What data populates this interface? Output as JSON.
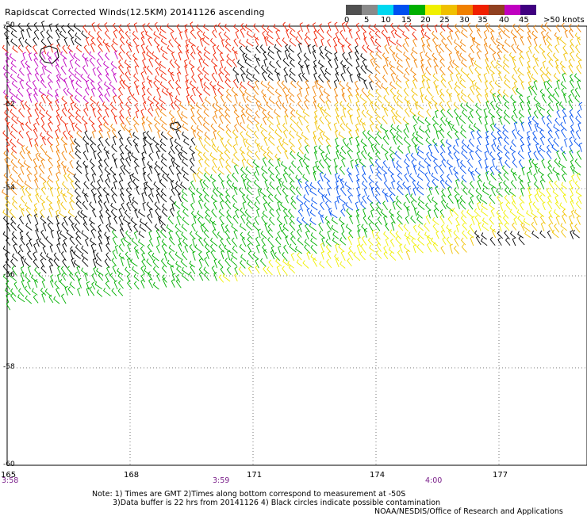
{
  "title": "Rapidscat Corrected Winds(12.5KM) 20141126 ascending",
  "colorbar": {
    "labels": [
      "0",
      "5",
      "10",
      "15",
      "20",
      "25",
      "30",
      "35",
      "40",
      "45",
      ">50 knots"
    ],
    "colors": [
      "#505050",
      "#8a8a8a",
      "#00d8f0",
      "#0050f0",
      "#00b000",
      "#f0f000",
      "#f0c000",
      "#f08000",
      "#f02000",
      "#904020",
      "#c000c0",
      "#400080"
    ]
  },
  "axes": {
    "latitude_labels": [
      "-50",
      "-52",
      "-54",
      "-56",
      "-58",
      "-60"
    ],
    "longitude_labels": [
      "165",
      "168",
      "171",
      "174",
      "177"
    ]
  },
  "times": [
    "3:58",
    "3:59",
    "4:00"
  ],
  "notes": {
    "line1": "Note: 1) Times are GMT 2)Times along bottom correspond to measurement at -50S",
    "line2": "3)Data buffer is 22 hrs from 20141126 4) Black circles indicate possible contamination",
    "line3": "NOAA/NESDIS/Office of Research and Applications"
  }
}
